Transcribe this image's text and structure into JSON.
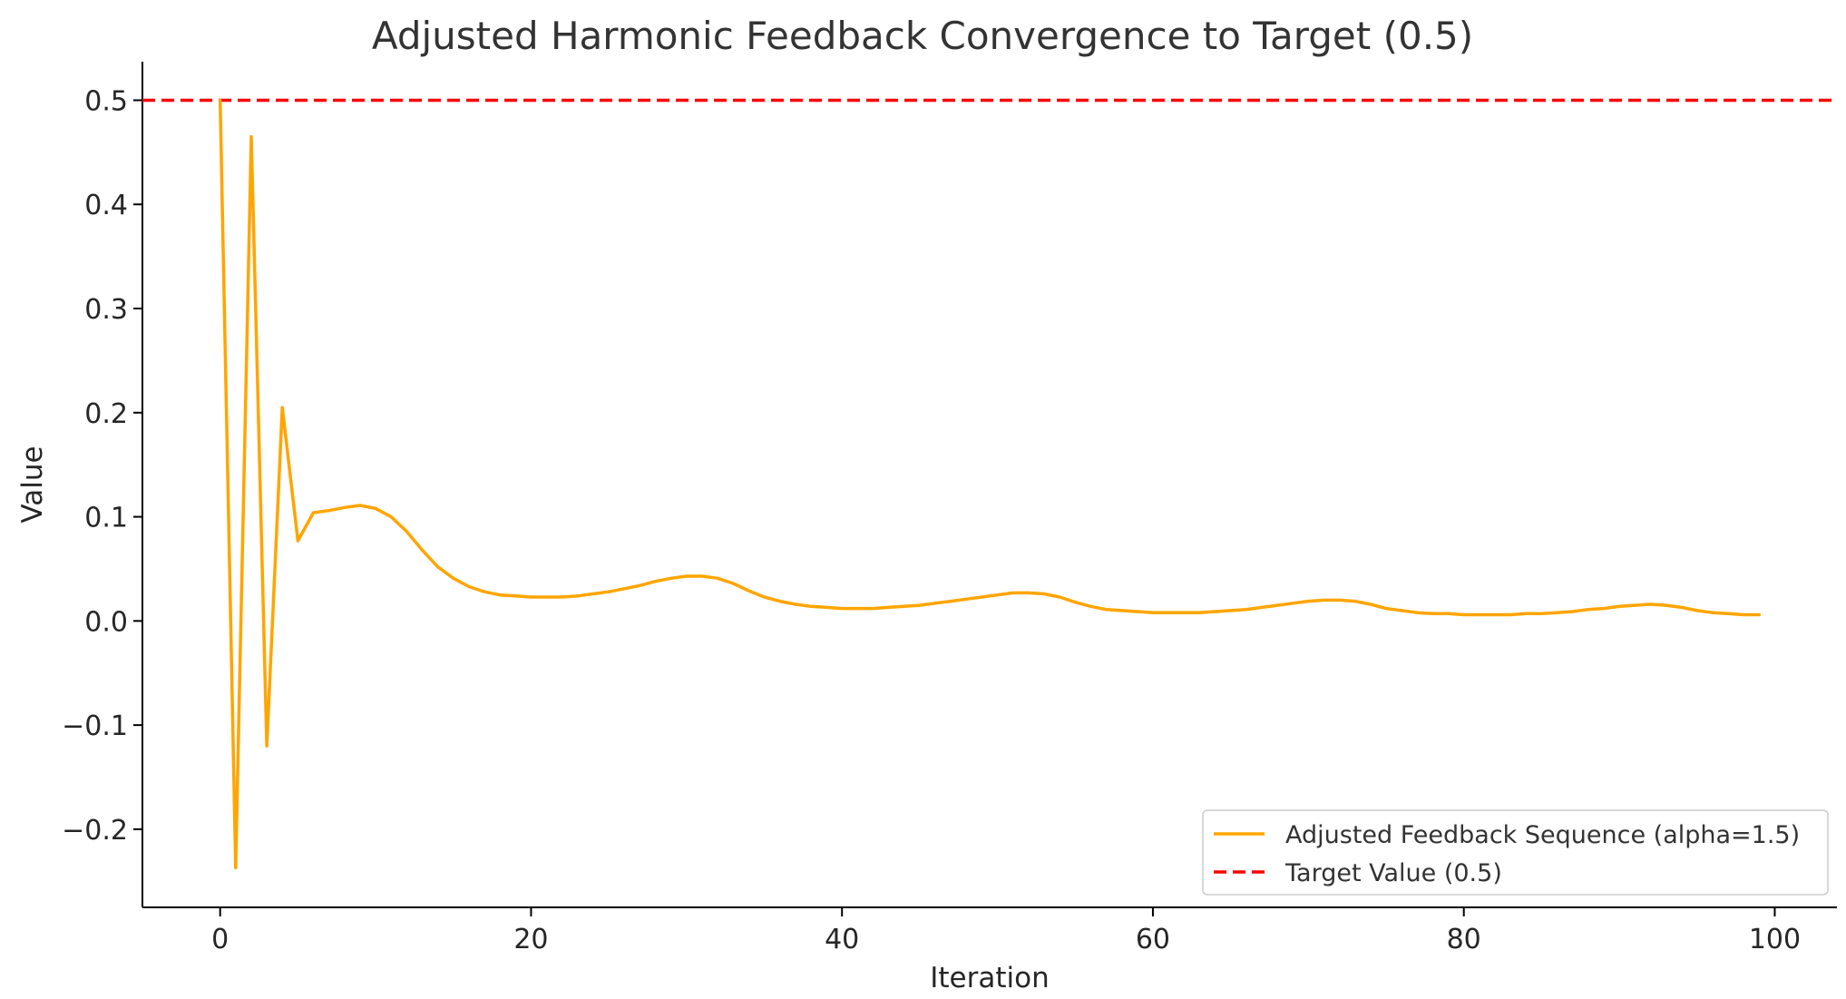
{
  "chart_data": {
    "type": "line",
    "title": "Adjusted Harmonic Feedback Convergence to Target (0.5)",
    "xlabel": "Iteration",
    "ylabel": "Value",
    "xlim": [
      -5,
      104
    ],
    "ylim": [
      -0.275,
      0.537
    ],
    "x_ticks": [
      0,
      20,
      40,
      60,
      80,
      100
    ],
    "y_ticks": [
      -0.2,
      -0.1,
      0.0,
      0.1,
      0.2,
      0.3,
      0.4,
      0.5
    ],
    "x_tick_labels": [
      "0",
      "20",
      "40",
      "60",
      "80",
      "100"
    ],
    "y_tick_labels": [
      "−0.2",
      "−0.1",
      "0.0",
      "0.1",
      "0.2",
      "0.3",
      "0.4",
      "0.5"
    ],
    "grid": false,
    "legend_position": "lower-right",
    "series": [
      {
        "name": "Adjusted Feedback Sequence (alpha=1.5)",
        "color": "#FFA500",
        "style": "solid",
        "x": [
          0,
          1,
          2,
          3,
          4,
          5,
          6,
          7,
          8,
          9,
          10,
          11,
          12,
          13,
          14,
          15,
          16,
          17,
          18,
          19,
          20,
          21,
          22,
          23,
          24,
          25,
          26,
          27,
          28,
          29,
          30,
          31,
          32,
          33,
          34,
          35,
          36,
          37,
          38,
          39,
          40,
          41,
          42,
          43,
          44,
          45,
          46,
          47,
          48,
          49,
          50,
          51,
          52,
          53,
          54,
          55,
          56,
          57,
          58,
          59,
          60,
          61,
          62,
          63,
          64,
          65,
          66,
          67,
          68,
          69,
          70,
          71,
          72,
          73,
          74,
          75,
          76,
          77,
          78,
          79,
          80,
          81,
          82,
          83,
          84,
          85,
          86,
          87,
          88,
          89,
          90,
          91,
          92,
          93,
          94,
          95,
          96,
          97,
          98,
          99
        ],
        "y": [
          0.5,
          -0.237,
          0.465,
          -0.12,
          0.205,
          0.077,
          0.104,
          0.106,
          0.109,
          0.111,
          0.108,
          0.1,
          0.086,
          0.068,
          0.052,
          0.041,
          0.033,
          0.028,
          0.025,
          0.024,
          0.023,
          0.023,
          0.023,
          0.024,
          0.026,
          0.028,
          0.031,
          0.034,
          0.038,
          0.041,
          0.043,
          0.043,
          0.041,
          0.036,
          0.029,
          0.023,
          0.019,
          0.016,
          0.014,
          0.013,
          0.012,
          0.012,
          0.012,
          0.013,
          0.014,
          0.015,
          0.017,
          0.019,
          0.021,
          0.023,
          0.025,
          0.027,
          0.027,
          0.026,
          0.023,
          0.018,
          0.014,
          0.011,
          0.01,
          0.009,
          0.008,
          0.008,
          0.008,
          0.008,
          0.009,
          0.01,
          0.011,
          0.013,
          0.015,
          0.017,
          0.019,
          0.02,
          0.02,
          0.019,
          0.016,
          0.012,
          0.01,
          0.008,
          0.007,
          0.007,
          0.006,
          0.006,
          0.006,
          0.006,
          0.007,
          0.007,
          0.008,
          0.009,
          0.011,
          0.012,
          0.014,
          0.015,
          0.016,
          0.015,
          0.013,
          0.01,
          0.008,
          0.007,
          0.006,
          0.006
        ]
      },
      {
        "name": "Target Value (0.5)",
        "color": "#FF0000",
        "style": "dashed",
        "y": 0.5
      }
    ]
  }
}
